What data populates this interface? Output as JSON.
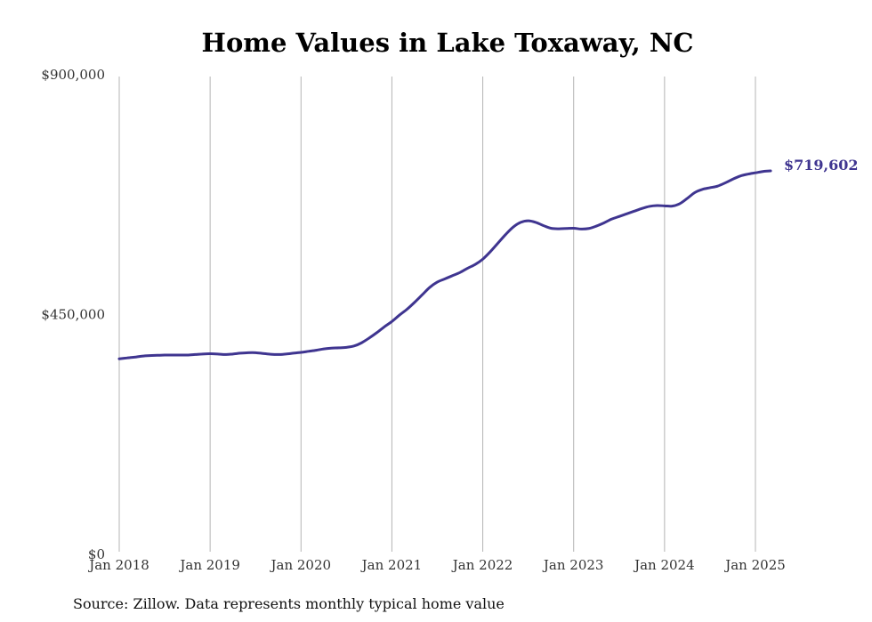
{
  "chart_data": {
    "type": "line",
    "title": "Home Values in Lake Toxaway, NC",
    "xlabel": "",
    "ylabel": "",
    "x_ticks": [
      "Jan 2018",
      "Jan 2019",
      "Jan 2020",
      "Jan 2021",
      "Jan 2022",
      "Jan 2023",
      "Jan 2024",
      "Jan 2025"
    ],
    "y_ticks": [
      "$0",
      "$450,000",
      "$900,000"
    ],
    "ylim": [
      0,
      900000
    ],
    "xlim": [
      "2018-01",
      "2025-04"
    ],
    "grid": "vertical",
    "series": [
      {
        "color": "#3f3590",
        "end_label": "$719,602",
        "points": [
          [
            "2018-01",
            367000
          ],
          [
            "2018-02",
            368500
          ],
          [
            "2018-03",
            370000
          ],
          [
            "2018-04",
            372000
          ],
          [
            "2018-05",
            373000
          ],
          [
            "2018-06",
            373500
          ],
          [
            "2018-07",
            374000
          ],
          [
            "2018-08",
            374000
          ],
          [
            "2018-09",
            374000
          ],
          [
            "2018-10",
            374000
          ],
          [
            "2018-11",
            375000
          ],
          [
            "2018-12",
            376000
          ],
          [
            "2019-01",
            376500
          ],
          [
            "2019-02",
            376000
          ],
          [
            "2019-03",
            375000
          ],
          [
            "2019-04",
            376000
          ],
          [
            "2019-05",
            377500
          ],
          [
            "2019-06",
            378500
          ],
          [
            "2019-07",
            378500
          ],
          [
            "2019-08",
            377000
          ],
          [
            "2019-09",
            375500
          ],
          [
            "2019-10",
            375000
          ],
          [
            "2019-11",
            376000
          ],
          [
            "2019-12",
            377500
          ],
          [
            "2020-01",
            379000
          ],
          [
            "2020-02",
            381000
          ],
          [
            "2020-03",
            383000
          ],
          [
            "2020-04",
            385500
          ],
          [
            "2020-05",
            387000
          ],
          [
            "2020-06",
            387500
          ],
          [
            "2020-07",
            388500
          ],
          [
            "2020-08",
            391000
          ],
          [
            "2020-09",
            397000
          ],
          [
            "2020-10",
            406000
          ],
          [
            "2020-11",
            416000
          ],
          [
            "2020-12",
            427000
          ],
          [
            "2021-01",
            437000
          ],
          [
            "2021-02",
            449000
          ],
          [
            "2021-03",
            460000
          ],
          [
            "2021-04",
            473000
          ],
          [
            "2021-05",
            487000
          ],
          [
            "2021-06",
            501000
          ],
          [
            "2021-07",
            511000
          ],
          [
            "2021-08",
            517000
          ],
          [
            "2021-09",
            523000
          ],
          [
            "2021-10",
            529000
          ],
          [
            "2021-11",
            537000
          ],
          [
            "2021-12",
            544000
          ],
          [
            "2022-01",
            554000
          ],
          [
            "2022-02",
            568000
          ],
          [
            "2022-03",
            584000
          ],
          [
            "2022-04",
            600000
          ],
          [
            "2022-05",
            614000
          ],
          [
            "2022-06",
            623000
          ],
          [
            "2022-07",
            626000
          ],
          [
            "2022-08",
            623000
          ],
          [
            "2022-09",
            617000
          ],
          [
            "2022-10",
            612000
          ],
          [
            "2022-11",
            611000
          ],
          [
            "2022-12",
            611500
          ],
          [
            "2023-01",
            612000
          ],
          [
            "2023-02",
            610500
          ],
          [
            "2023-03",
            611500
          ],
          [
            "2023-04",
            616000
          ],
          [
            "2023-05",
            622000
          ],
          [
            "2023-06",
            629000
          ],
          [
            "2023-07",
            634000
          ],
          [
            "2023-08",
            639000
          ],
          [
            "2023-09",
            644000
          ],
          [
            "2023-10",
            649000
          ],
          [
            "2023-11",
            653000
          ],
          [
            "2023-12",
            654500
          ],
          [
            "2024-01",
            654000
          ],
          [
            "2024-02",
            653500
          ],
          [
            "2024-03",
            658000
          ],
          [
            "2024-04",
            668000
          ],
          [
            "2024-05",
            679000
          ],
          [
            "2024-06",
            685000
          ],
          [
            "2024-07",
            688000
          ],
          [
            "2024-08",
            691000
          ],
          [
            "2024-09",
            697000
          ],
          [
            "2024-10",
            704000
          ],
          [
            "2024-11",
            710000
          ],
          [
            "2024-12",
            713500
          ],
          [
            "2025-01",
            716000
          ],
          [
            "2025-02",
            718500
          ],
          [
            "2025-03",
            719602
          ]
        ]
      }
    ]
  },
  "footer": {
    "source": "Source: Zillow. Data represents monthly typical home value"
  }
}
